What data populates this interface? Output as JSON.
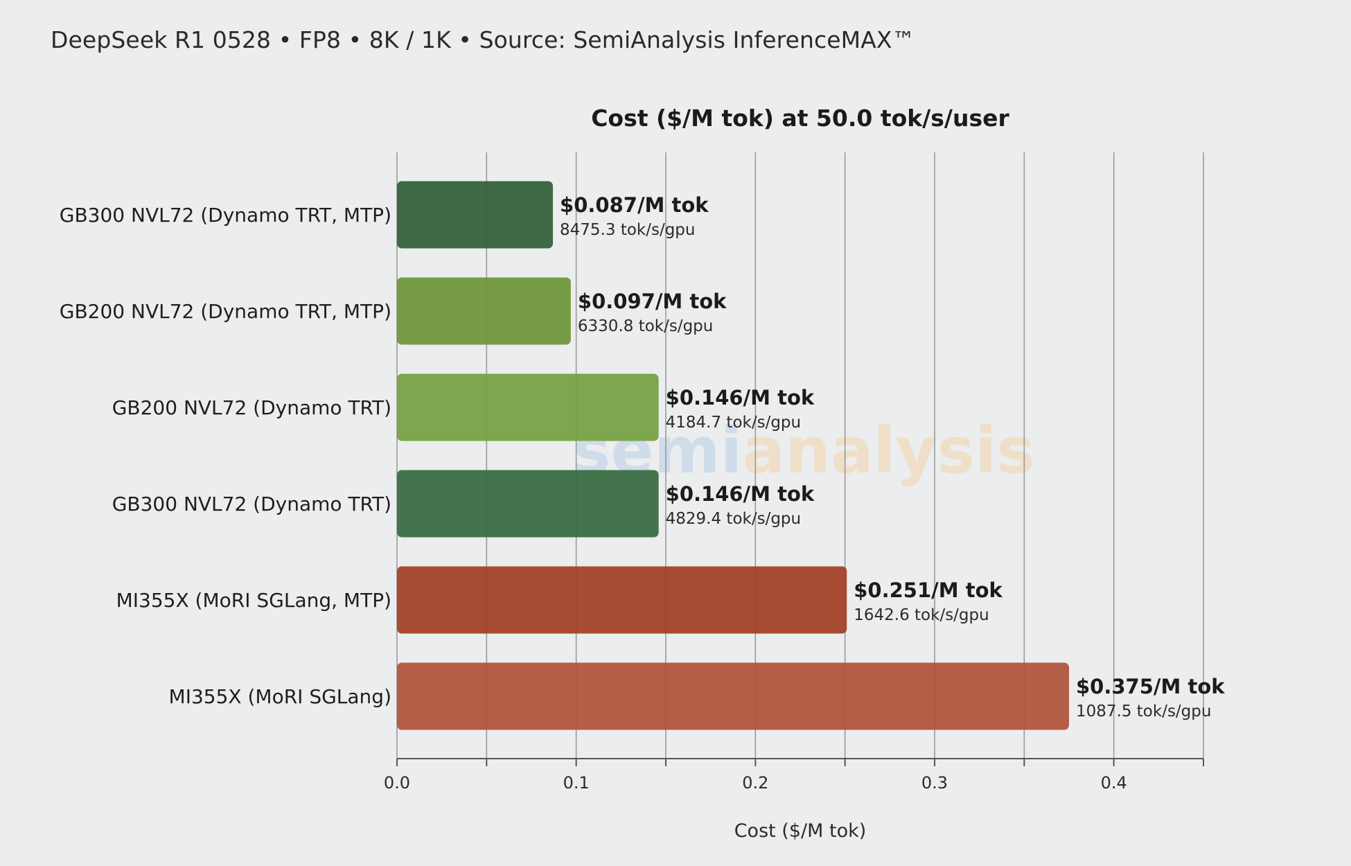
{
  "header": {
    "subtitle": "DeepSeek R1 0528 • FP8 • 8K / 1K • Source: SemiAnalysis InferenceMAX™"
  },
  "watermark": {
    "part1": "semi",
    "part2": "analysis",
    "color1": "#c9d9ea",
    "color2": "#f1dcbf"
  },
  "chart_data": {
    "type": "bar",
    "orientation": "horizontal",
    "title": "Cost ($/M tok) at 50.0 tok/s/user",
    "xlabel": "Cost ($/M tok)",
    "ylabel": "",
    "xlim": [
      0,
      0.45
    ],
    "xticks": [
      0.0,
      0.1,
      0.2,
      0.3,
      0.4
    ],
    "tick_labels": [
      "0.0",
      "0.1",
      "0.2",
      "0.3",
      "0.4"
    ],
    "grid": "vertical every 0.05",
    "categories": [
      "GB300 NVL72 (Dynamo TRT, MTP)",
      "GB200 NVL72 (Dynamo TRT, MTP)",
      "GB200 NVL72 (Dynamo TRT)",
      "GB300 NVL72 (Dynamo TRT)",
      "MI355X (MoRI SGLang, MTP)",
      "MI355X (MoRI SGLang)"
    ],
    "values": [
      0.087,
      0.097,
      0.146,
      0.146,
      0.251,
      0.375
    ],
    "value_labels": [
      "$0.087/M tok",
      "$0.097/M tok",
      "$0.146/M tok",
      "$0.146/M tok",
      "$0.251/M tok",
      "$0.375/M tok"
    ],
    "throughput_labels": [
      "8475.3 tok/s/gpu",
      "6330.8 tok/s/gpu",
      "4184.7 tok/s/gpu",
      "4829.4 tok/s/gpu",
      "1642.6 tok/s/gpu",
      "1087.5 tok/s/gpu"
    ],
    "colors": [
      "#2f5f36",
      "#6e963a",
      "#74a043",
      "#376a40",
      "#a13f25",
      "#b0533a"
    ]
  },
  "colors": {
    "background": "#ecedee",
    "grid": "#9a9a9a",
    "axis": "#555555"
  }
}
